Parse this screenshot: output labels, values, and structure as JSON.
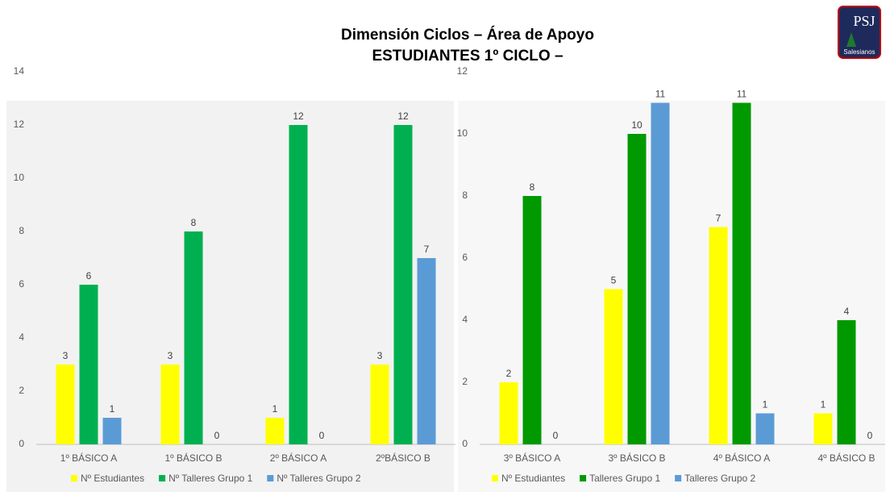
{
  "slide": {
    "title_line1": "Dimensión Ciclos – Área de Apoyo",
    "title_line2": "ESTUDIANTES 1º CICLO –",
    "logo_text": "PSJ",
    "logo_subtext": "Salesianos"
  },
  "chart_data": [
    {
      "type": "bar",
      "categories": [
        "1º BÁSICO A",
        "1º BÁSICO B",
        "2º BÁSICO A",
        "2ºBÁSICO B"
      ],
      "series": [
        {
          "name": "Nº Estudiantes",
          "color": "#ffff00",
          "values": [
            3,
            3,
            1,
            3
          ]
        },
        {
          "name": "Nº Talleres Grupo 1",
          "color": "#00b050",
          "values": [
            6,
            8,
            12,
            12
          ]
        },
        {
          "name": "Nº Talleres Grupo 2",
          "color": "#5b9bd5",
          "values": [
            1,
            0,
            0,
            7
          ]
        }
      ],
      "ylim": [
        0,
        14
      ],
      "yticks": [
        0,
        2,
        4,
        6,
        8,
        10,
        12,
        14
      ],
      "legend": "bottom"
    },
    {
      "type": "bar",
      "categories": [
        "3º BÁSICO A",
        "3º BÁSICO B",
        "4º BÁSICO A",
        "4º  BÁSICO B"
      ],
      "series": [
        {
          "name": "Nº Estudiantes",
          "color": "#ffff00",
          "values": [
            2,
            5,
            7,
            1
          ]
        },
        {
          "name": "Talleres Grupo 1",
          "color": "#009900",
          "values": [
            8,
            10,
            11,
            4
          ]
        },
        {
          "name": "Talleres Grupo 2",
          "color": "#5b9bd5",
          "values": [
            0,
            11,
            1,
            0
          ]
        }
      ],
      "ylim": [
        0,
        12
      ],
      "yticks": [
        0,
        2,
        4,
        6,
        8,
        10,
        12
      ],
      "legend": "bottom"
    }
  ]
}
